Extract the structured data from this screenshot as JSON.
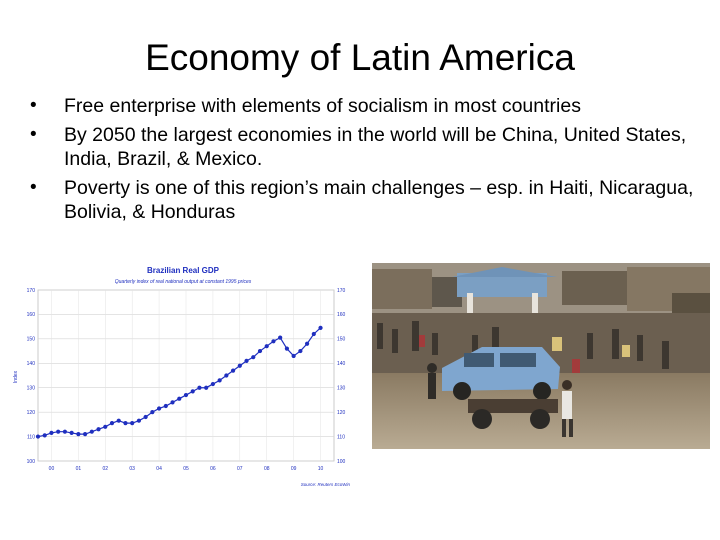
{
  "slide": {
    "title": "Economy of Latin America",
    "bullets": [
      "Free enterprise with elements of socialism in most countries",
      "By 2050 the largest economies in the world will be China, United States, India, Brazil, & Mexico.",
      "Poverty  is one of this region’s main challenges – esp. in Haiti, Nicaragua, Bolivia, & Honduras"
    ]
  },
  "chart_data": {
    "type": "line",
    "title": "Brazilian Real GDP",
    "subtitle": "Quarterly index of real national output at constant 1995 prices",
    "ylabel": "Index",
    "source": "Source: Reuters EcoWin",
    "ylim": [
      100,
      170
    ],
    "yticks": [
      100,
      110,
      120,
      130,
      140,
      150,
      160,
      170
    ],
    "xticks": [
      "00",
      "01",
      "02",
      "03",
      "04",
      "05",
      "06",
      "07",
      "08",
      "09",
      "10"
    ],
    "xlim": [
      0,
      11
    ],
    "grid": true,
    "series": [
      {
        "color": "#1f2fbf",
        "x": [
          0,
          0.25,
          0.5,
          0.75,
          1,
          1.25,
          1.5,
          1.75,
          2,
          2.25,
          2.5,
          2.75,
          3,
          3.25,
          3.5,
          3.75,
          4,
          4.25,
          4.5,
          4.75,
          5,
          5.25,
          5.5,
          5.75,
          6,
          6.25,
          6.5,
          6.75,
          7,
          7.25,
          7.5,
          7.75,
          8,
          8.25,
          8.5,
          8.75,
          9,
          9.25,
          9.5,
          9.75,
          10,
          10.25,
          10.5
        ],
        "values": [
          110,
          110.5,
          111.5,
          112,
          112,
          111.5,
          111,
          111,
          112,
          113,
          114,
          115.5,
          116.5,
          115.5,
          115.5,
          116.5,
          118,
          120,
          121.5,
          122.5,
          124,
          125.5,
          127,
          128.5,
          130,
          130,
          131.5,
          133,
          135,
          137,
          139,
          141,
          142.5,
          145,
          147,
          149,
          150.5,
          146,
          143,
          145,
          148,
          152,
          154.5
        ]
      }
    ]
  },
  "photo": {
    "icon": "haiti-street-photo"
  }
}
